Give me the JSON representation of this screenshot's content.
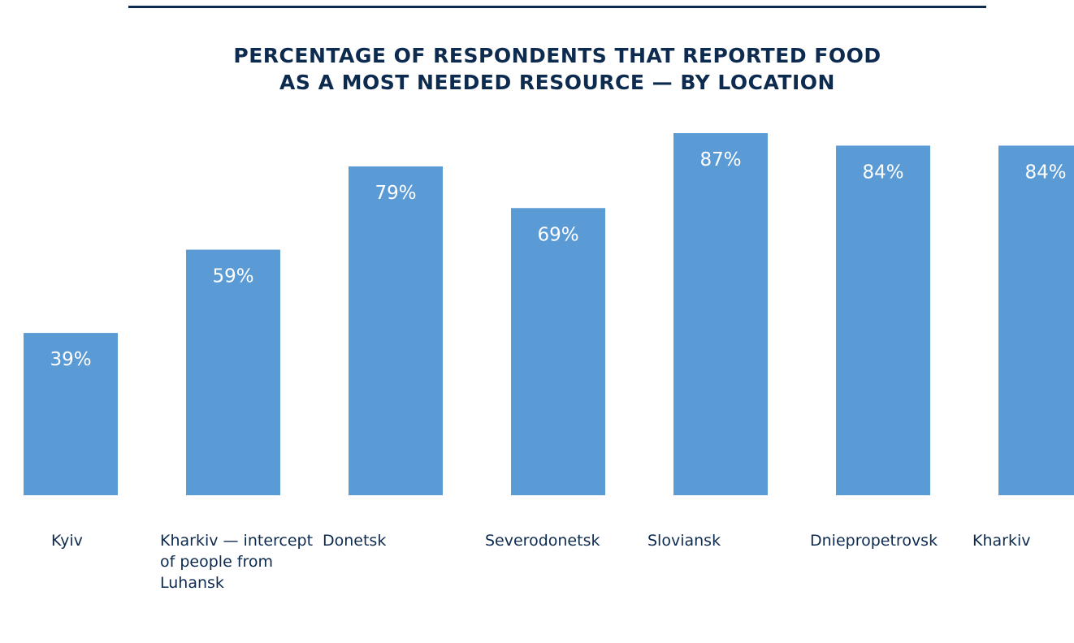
{
  "chart_data": {
    "type": "bar",
    "title_lines": [
      "PERCENTAGE OF RESPONDENTS THAT REPORTED FOOD",
      "AS A MOST NEEDED RESOURCE — BY LOCATION"
    ],
    "categories": [
      "Kyiv",
      "Kharkiv — intercept of people from Luhansk",
      "Donetsk",
      "Severodonetsk",
      "Sloviansk",
      "Dniepropetrovsk",
      "Kharkiv"
    ],
    "values": [
      39,
      59,
      79,
      69,
      87,
      84,
      84
    ],
    "value_labels": [
      "39%",
      "59%",
      "79%",
      "69%",
      "87%",
      "84%",
      "84%"
    ],
    "unit": "%",
    "ylim": [
      0,
      87
    ],
    "grid": false,
    "legend": "none",
    "colors": {
      "bar": "#5b9bd5",
      "title": "#0d2a4f",
      "label": "#0d2a4f",
      "value_text": "#ffffff"
    }
  }
}
